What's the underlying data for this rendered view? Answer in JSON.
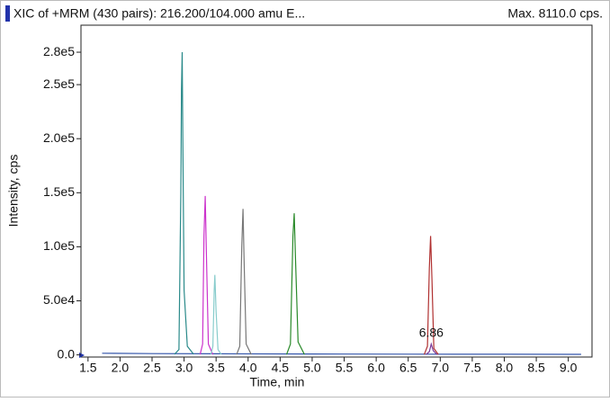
{
  "chart_data": {
    "type": "line",
    "title": "XIC of +MRM (430 pairs): 216.200/104.000 amu E...",
    "subtitle": "Max. 8110.0 cps.",
    "xlabel": "Time, min",
    "ylabel": "Intensity, cps",
    "xlim": [
      1.39,
      9.37
    ],
    "ylim": [
      -2000,
      305000
    ],
    "xticks": [
      {
        "value": 1.5,
        "label": "1.5"
      },
      {
        "value": 2,
        "label": "2.0"
      },
      {
        "value": 2.5,
        "label": "2.5"
      },
      {
        "value": 3,
        "label": "3.0"
      },
      {
        "value": 3.5,
        "label": "3.5"
      },
      {
        "value": 4,
        "label": "4.0"
      },
      {
        "value": 4.5,
        "label": "4.5"
      },
      {
        "value": 5,
        "label": "5.0"
      },
      {
        "value": 5.5,
        "label": "5.5"
      },
      {
        "value": 6,
        "label": "6.0"
      },
      {
        "value": 6.5,
        "label": "6.5"
      },
      {
        "value": 7,
        "label": "7.0"
      },
      {
        "value": 7.5,
        "label": "7.5"
      },
      {
        "value": 8,
        "label": "8.0"
      },
      {
        "value": 8.5,
        "label": "8.5"
      },
      {
        "value": 9,
        "label": "9.0"
      }
    ],
    "yticks": [
      {
        "value": 0,
        "label": "0.0"
      },
      {
        "value": 50000,
        "label": "5.0e4"
      },
      {
        "value": 100000,
        "label": "1.0e5"
      },
      {
        "value": 150000,
        "label": "1.5e5"
      },
      {
        "value": 200000,
        "label": "2.0e5"
      },
      {
        "value": 250000,
        "label": "2.5e5"
      },
      {
        "value": 280000,
        "label": "2.8e5"
      }
    ],
    "series": [
      {
        "color": "#3355aa",
        "x": [
          1.72,
          2.5,
          3.5,
          5.0,
          6.5,
          8.0,
          9.2
        ],
        "values": [
          1500,
          1200,
          1000,
          800,
          700,
          600,
          500
        ]
      },
      {
        "color": "#2a8a8a",
        "x": [
          2.85,
          2.92,
          2.95,
          2.96,
          2.97,
          2.98,
          3.0,
          3.05,
          3.15
        ],
        "values": [
          500,
          5000,
          150000,
          245000,
          280000,
          200000,
          60000,
          8000,
          500
        ]
      },
      {
        "color": "#cc33cc",
        "x": [
          3.25,
          3.29,
          3.31,
          3.33,
          3.35,
          3.38,
          3.45
        ],
        "values": [
          300,
          10000,
          110000,
          147000,
          90000,
          10000,
          300
        ]
      },
      {
        "color": "#88cccc",
        "x": [
          3.42,
          3.45,
          3.47,
          3.48,
          3.5,
          3.53,
          3.58
        ],
        "values": [
          300,
          8000,
          60000,
          74000,
          40000,
          5000,
          300
        ]
      },
      {
        "color": "#777777",
        "x": [
          3.82,
          3.87,
          3.9,
          3.92,
          3.94,
          3.97,
          4.05
        ],
        "values": [
          300,
          8000,
          100000,
          135000,
          80000,
          10000,
          300
        ]
      },
      {
        "color": "#2a8a2a",
        "x": [
          4.6,
          4.66,
          4.7,
          4.72,
          4.74,
          4.78,
          4.88
        ],
        "values": [
          300,
          10000,
          110000,
          131000,
          90000,
          12000,
          300
        ]
      },
      {
        "color": "#b03030",
        "x": [
          6.75,
          6.8,
          6.83,
          6.85,
          6.87,
          6.9,
          6.97
        ],
        "values": [
          300,
          8000,
          80000,
          110000,
          70000,
          6000,
          300
        ]
      },
      {
        "color": "#7a3a9a",
        "x": [
          6.78,
          6.83,
          6.86,
          6.89,
          6.95
        ],
        "values": [
          300,
          3000,
          10000,
          4000,
          300
        ]
      }
    ],
    "annotation": "6.86"
  }
}
